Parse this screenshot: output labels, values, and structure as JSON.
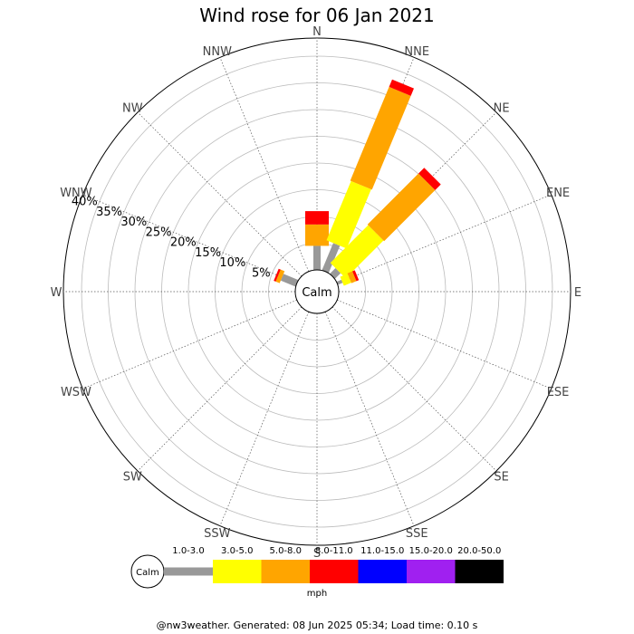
{
  "chart_data": {
    "type": "wind_rose",
    "title": "Wind rose for 06 Jan 2021",
    "directions": [
      "N",
      "NNE",
      "NE",
      "ENE",
      "E",
      "ESE",
      "SE",
      "SSE",
      "S",
      "SSW",
      "SW",
      "WSW",
      "W",
      "WNW",
      "NW",
      "NNW"
    ],
    "ring_percent": [
      5,
      10,
      15,
      20,
      25,
      30,
      35,
      40
    ],
    "ring_labels": [
      "5%",
      "10%",
      "15%",
      "20%",
      "25%",
      "30%",
      "35%",
      "40%"
    ],
    "calm_label": "Calm",
    "speed_bins": [
      {
        "label": "1.0-3.0",
        "color": "#999999"
      },
      {
        "label": "3.0-5.0",
        "color": "#ffff00"
      },
      {
        "label": "5.0-8.0",
        "color": "#ffa500"
      },
      {
        "label": "8.0-11.0",
        "color": "#ff0000"
      },
      {
        "label": "11.0-15.0",
        "color": "#0000ff"
      },
      {
        "label": "15.0-20.0",
        "color": "#a020f0"
      },
      {
        "label": "20.0-50.0",
        "color": "#000000"
      }
    ],
    "unit": "mph",
    "series": [
      {
        "direction": "N",
        "percent": [
          4.5,
          0.0,
          4.0,
          2.5,
          0,
          0,
          0
        ]
      },
      {
        "direction": "NNE",
        "percent": [
          5.5,
          12.0,
          19.0,
          1.5,
          0,
          0,
          0
        ]
      },
      {
        "direction": "NE",
        "percent": [
          1.5,
          10.0,
          13.5,
          1.5,
          0,
          0,
          0
        ]
      },
      {
        "direction": "ENE",
        "percent": [
          1.0,
          1.5,
          1.0,
          0.5,
          0,
          0,
          0
        ]
      },
      {
        "direction": "WNW",
        "percent": [
          3.0,
          0.0,
          0.8,
          0.4,
          0,
          0,
          0
        ]
      }
    ]
  },
  "footer": "@nw3weather. Generated: 08 Jun 2025 05:34; Load time: 0.10 s"
}
